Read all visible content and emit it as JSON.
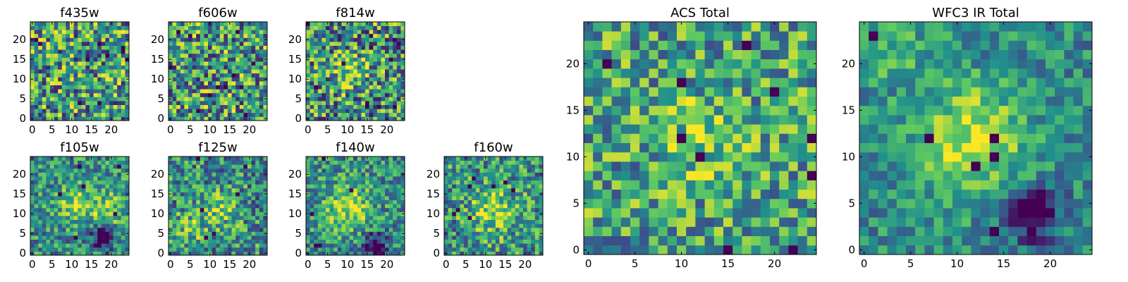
{
  "figure": {
    "description_none": ""
  },
  "colormap": [
    "#440154",
    "#3b528b",
    "#21918c",
    "#5ec962",
    "#fde725"
  ],
  "chart_data": [
    {
      "id": "f435w",
      "type": "heatmap",
      "title": "f435w",
      "grid": 25,
      "xlim": [
        0,
        24
      ],
      "ylim": [
        0,
        24
      ],
      "xticks": [
        "0",
        "5",
        "10",
        "15",
        "20"
      ],
      "yticks": [
        "0",
        "5",
        "10",
        "15",
        "20"
      ],
      "blobs": [],
      "bias": 0.55,
      "noise": 0.45,
      "dark_spots": 10,
      "seed": 11
    },
    {
      "id": "f606w",
      "type": "heatmap",
      "title": "f606w",
      "grid": 25,
      "xlim": [
        0,
        24
      ],
      "ylim": [
        0,
        24
      ],
      "xticks": [
        "0",
        "5",
        "10",
        "15",
        "20"
      ],
      "yticks": [
        "0",
        "5",
        "10",
        "15",
        "20"
      ],
      "blobs": [],
      "bias": 0.55,
      "noise": 0.45,
      "dark_spots": 12,
      "seed": 23
    },
    {
      "id": "f814w",
      "type": "heatmap",
      "title": "f814w",
      "grid": 25,
      "xlim": [
        0,
        24
      ],
      "ylim": [
        0,
        24
      ],
      "xticks": [
        "0",
        "5",
        "10",
        "15",
        "20"
      ],
      "yticks": [
        "0",
        "5",
        "10",
        "15",
        "20"
      ],
      "blobs": [
        [
          11,
          12,
          3,
          0.3
        ]
      ],
      "bias": 0.52,
      "noise": 0.45,
      "dark_spots": 12,
      "seed": 37
    },
    {
      "id": "f105w",
      "type": "heatmap",
      "title": "f105w",
      "grid": 25,
      "xlim": [
        0,
        24
      ],
      "ylim": [
        0,
        24
      ],
      "xticks": [
        "0",
        "5",
        "10",
        "15",
        "20"
      ],
      "yticks": [
        "0",
        "5",
        "10",
        "15",
        "20"
      ],
      "blobs": [
        [
          11,
          13,
          3,
          0.35
        ],
        [
          19,
          11,
          3,
          0.3
        ]
      ],
      "bias": 0.5,
      "noise": 0.3,
      "dark_spots": 6,
      "seed": 41,
      "dark_blob": [
        18,
        4,
        2
      ]
    },
    {
      "id": "f125w",
      "type": "heatmap",
      "title": "f125w",
      "grid": 25,
      "xlim": [
        0,
        24
      ],
      "ylim": [
        0,
        24
      ],
      "xticks": [
        "0",
        "5",
        "10",
        "15",
        "20"
      ],
      "yticks": [
        "0",
        "5",
        "10",
        "15",
        "20"
      ],
      "blobs": [
        [
          13,
          11,
          3,
          0.3
        ],
        [
          5,
          6,
          3,
          0.2
        ]
      ],
      "bias": 0.5,
      "noise": 0.35,
      "dark_spots": 6,
      "seed": 53
    },
    {
      "id": "f140w",
      "type": "heatmap",
      "title": "f140w",
      "grid": 25,
      "xlim": [
        0,
        24
      ],
      "ylim": [
        0,
        24
      ],
      "xticks": [
        "0",
        "5",
        "10",
        "15",
        "20"
      ],
      "yticks": [
        "0",
        "5",
        "10",
        "15",
        "20"
      ],
      "blobs": [
        [
          10,
          12,
          4,
          0.4
        ]
      ],
      "bias": 0.5,
      "noise": 0.3,
      "dark_spots": 5,
      "seed": 67,
      "dark_blob": [
        17,
        2,
        2
      ]
    },
    {
      "id": "f160w",
      "type": "heatmap",
      "title": "f160w",
      "grid": 25,
      "xlim": [
        0,
        24
      ],
      "ylim": [
        0,
        24
      ],
      "xticks": [
        "0",
        "5",
        "10",
        "15",
        "20"
      ],
      "yticks": [
        "0",
        "5",
        "10",
        "15",
        "20"
      ],
      "blobs": [
        [
          12,
          11,
          4,
          0.35
        ]
      ],
      "bias": 0.52,
      "noise": 0.35,
      "dark_spots": 8,
      "seed": 79
    },
    {
      "id": "acs_total",
      "type": "heatmap",
      "title": "ACS Total",
      "grid": 25,
      "xlim": [
        0,
        24
      ],
      "ylim": [
        0,
        24
      ],
      "xticks": [
        "0",
        "5",
        "10",
        "15",
        "20"
      ],
      "yticks": [
        "0",
        "5",
        "10",
        "15",
        "20"
      ],
      "blobs": [
        [
          12,
          12,
          3,
          0.2
        ]
      ],
      "bias": 0.58,
      "noise": 0.35,
      "dark_spots": 10,
      "seed": 97
    },
    {
      "id": "wfc3_total",
      "type": "heatmap",
      "title": "WFC3 IR Total",
      "grid": 25,
      "xlim": [
        0,
        24
      ],
      "ylim": [
        0,
        24
      ],
      "xticks": [
        "0",
        "5",
        "10",
        "15",
        "20"
      ],
      "yticks": [
        "0",
        "5",
        "10",
        "15",
        "20"
      ],
      "blobs": [
        [
          12,
          12,
          4,
          0.45
        ],
        [
          2,
          22,
          3,
          0.2
        ]
      ],
      "bias": 0.48,
      "noise": 0.22,
      "dark_spots": 6,
      "seed": 101,
      "dark_blob": [
        18,
        4,
        2
      ]
    }
  ]
}
